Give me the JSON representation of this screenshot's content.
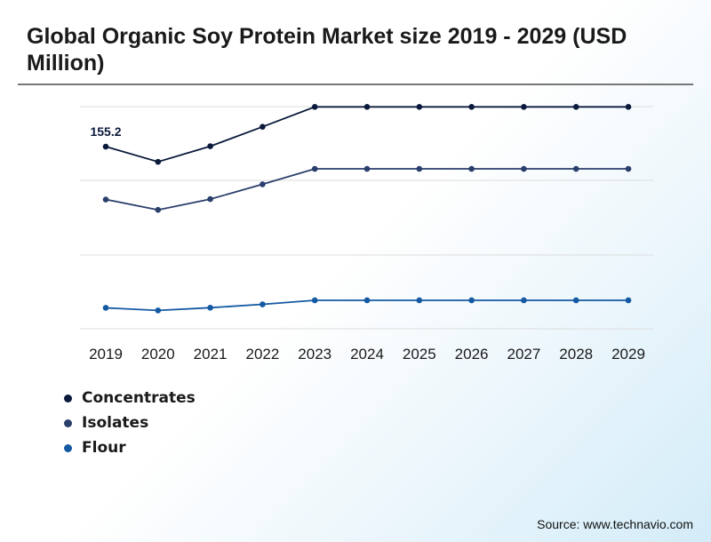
{
  "title": "Global Organic Soy Protein Market size 2019 - 2029 (USD Million)",
  "source": "Source: www.technavio.com",
  "chart_data": {
    "type": "line",
    "title": "Global Organic Soy Protein Market size 2019 - 2029 (USD Million)",
    "x": [
      "2019",
      "2020",
      "2021",
      "2022",
      "2023",
      "2024",
      "2025",
      "2026",
      "2027",
      "2028",
      "2029"
    ],
    "series": [
      {
        "name": "Concentrates",
        "color": "#0b1a3c",
        "values": [
          155.2,
          143.5,
          155.5,
          170.5,
          185.8,
          185.8,
          185.8,
          185.8,
          185.8,
          185.8,
          185.8
        ]
      },
      {
        "name": "Isolates",
        "color": "#2b3f6c",
        "values": [
          114.5,
          106.5,
          114.8,
          126.2,
          138.1,
          138.1,
          138.1,
          138.1,
          138.1,
          138.1,
          138.1
        ]
      },
      {
        "name": "Flour",
        "color": "#1459a2",
        "values": [
          31.1,
          29.1,
          31.2,
          33.8,
          36.9,
          36.9,
          36.9,
          36.9,
          36.9,
          36.9,
          36.9
        ]
      }
    ],
    "data_labels": [
      {
        "series": "Concentrates",
        "index": 0,
        "text": "155.2"
      }
    ],
    "ylim": [
      15,
      186
    ],
    "grid": true,
    "xlabel": "",
    "ylabel": "",
    "legend": "bottom-left"
  }
}
